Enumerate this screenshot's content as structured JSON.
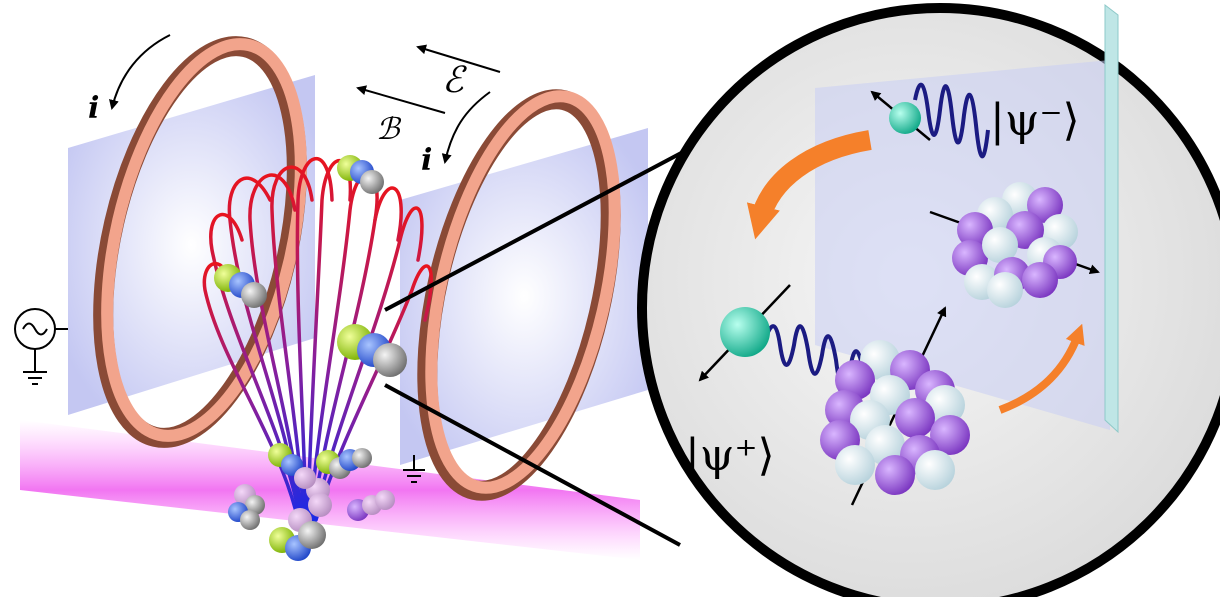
{
  "labels": {
    "current_left": "i",
    "current_right": "i",
    "electric_field": "ℰ",
    "magnetic_field": "ℬ",
    "state_minus": "|ψ⁻⟩",
    "state_plus": "|ψ⁺⟩"
  },
  "colors": {
    "ring_outer": "#f2a48c",
    "ring_edge": "#8a4a36",
    "plate": "#c9cdf4",
    "field_top": "#e01a2a",
    "field_bottom": "#2a2adf",
    "laser": "#f060f0",
    "arrow_orange": "#f5802a",
    "photon_wave": "#1b1b82",
    "electron": "#2ad6b4",
    "nucleon_purple": "#9a55d8",
    "nucleon_white": "#e6f4f8",
    "atom_green": "#a8e020",
    "atom_blue": "#3a6aea",
    "atom_gray": "#909090",
    "mirror": "#bfe6e6"
  },
  "icons": [
    "ac-source-icon",
    "ground-icon",
    "ground-icon"
  ]
}
